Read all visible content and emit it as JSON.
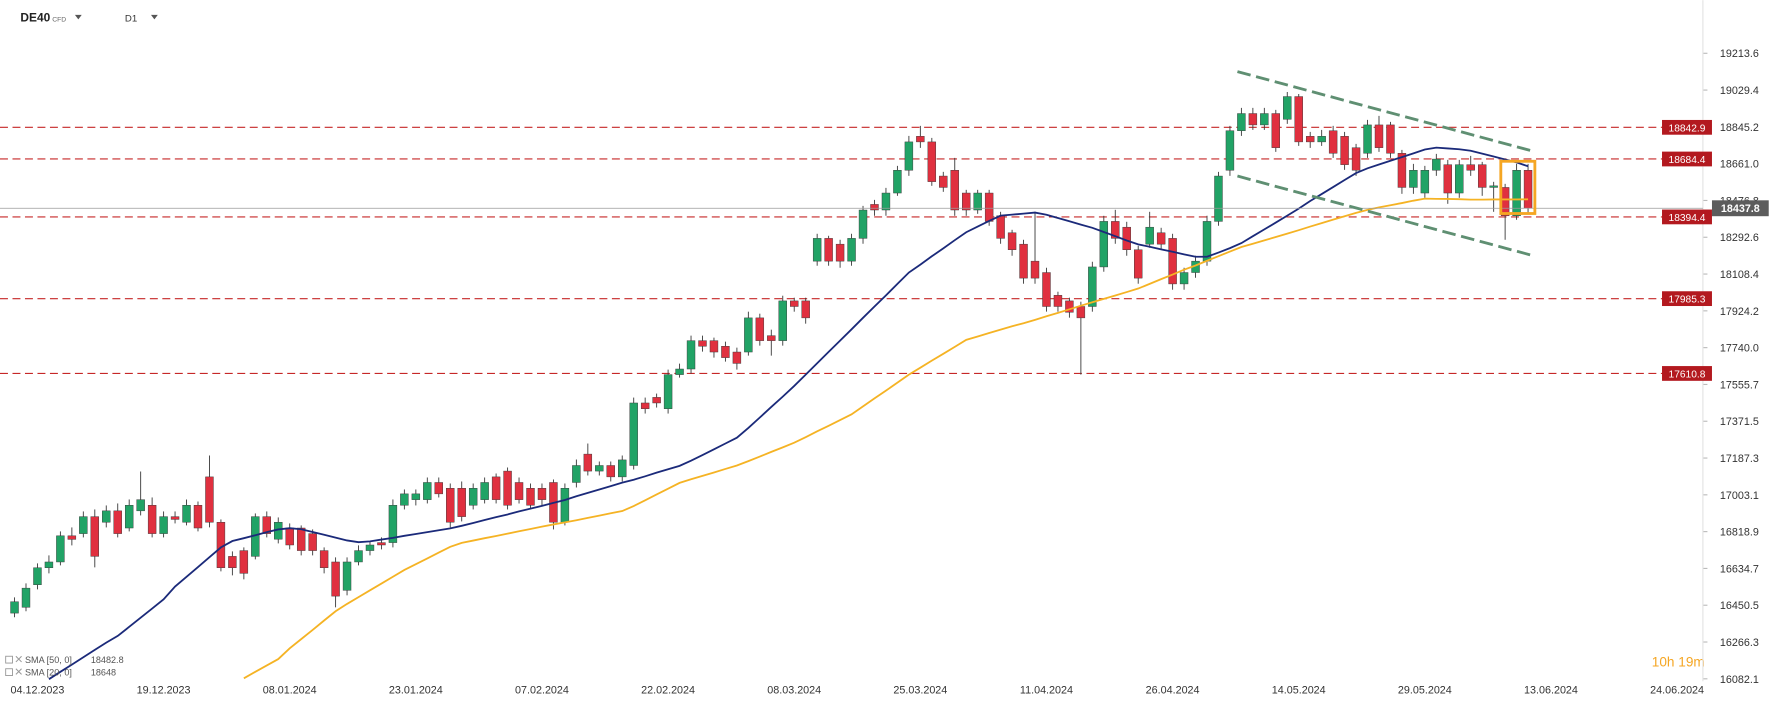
{
  "header": {
    "symbol": "DE40",
    "symbol_type": "CFD",
    "timeframe": "D1"
  },
  "chart_data": {
    "type": "candlestick",
    "up_color": "#21a366",
    "down_color": "#e0303f",
    "ylim": [
      16070,
      19480
    ],
    "yticks": [
      19213.6,
      19029.4,
      18845.2,
      {
        "value": 18661,
        "label": "18661.0"
      },
      18476.8,
      18292.6,
      18108.4,
      17924.2,
      {
        "value": 17740,
        "label": "17740.0"
      },
      17555.7,
      17371.5,
      17187.3,
      17003.1,
      16818.9,
      16634.7,
      16450.5,
      16266.3,
      16082.1
    ],
    "categories": [
      null,
      null,
      "04.12.2023",
      null,
      null,
      null,
      null,
      null,
      null,
      null,
      null,
      null,
      null,
      "19.12.2023",
      null,
      null,
      null,
      null,
      null,
      null,
      null,
      null,
      null,
      null,
      "08.01.2024",
      null,
      null,
      null,
      null,
      null,
      null,
      null,
      null,
      null,
      null,
      "23.01.2024",
      null,
      null,
      null,
      null,
      null,
      null,
      null,
      null,
      null,
      null,
      "07.02.2024",
      null,
      null,
      null,
      null,
      null,
      null,
      null,
      null,
      null,
      null,
      "22.02.2024",
      null,
      null,
      null,
      null,
      null,
      null,
      null,
      null,
      null,
      null,
      "08.03.2024",
      null,
      null,
      null,
      null,
      null,
      null,
      null,
      null,
      null,
      null,
      "25.03.2024",
      null,
      null,
      null,
      null,
      null,
      null,
      null,
      null,
      null,
      null,
      "11.04.2024",
      null,
      null,
      null,
      null,
      null,
      null,
      null,
      null,
      null,
      null,
      "26.04.2024",
      null,
      null,
      null,
      null,
      null,
      null,
      null,
      null,
      null,
      null,
      "14.05.2024",
      null,
      null,
      null,
      null,
      null,
      null,
      null,
      null,
      null,
      null,
      "29.05.2024",
      null,
      null,
      null,
      null,
      null,
      null,
      null,
      null,
      null,
      null,
      "13.06.2024",
      null,
      null,
      null,
      null,
      null,
      null,
      null,
      null,
      null,
      null,
      "24.06.2024"
    ],
    "open": [
      16411,
      16440,
      16553,
      16638,
      16667,
      16798,
      16809,
      16894,
      16866,
      16923,
      16837,
      16923,
      16951,
      16809,
      16894,
      16866,
      16951,
      17093,
      16866,
      16695,
      16724,
      16695,
      16894,
      16781,
      16837,
      16837,
      16809,
      16724,
      16667,
      16525,
      16667,
      16724,
      16764,
      16764,
      16951,
      16979,
      16979,
      17065,
      17036,
      17036,
      16951,
      16979,
      17093,
      17122,
      17065,
      17036,
      17036,
      17065,
      16866,
      17065,
      17207,
      17122,
      17150,
      17093,
      17150,
      17463,
      17491,
      17434,
      17605,
      17633,
      17775,
      17775,
      17747,
      17718,
      17718,
      17889,
      17800,
      17775,
      17974,
      17974,
      18173,
      18287,
      18258,
      18173,
      18287,
      18457,
      18429,
      18514,
      18628,
      18798,
      18770,
      18599,
      18628,
      18514,
      18429,
      18514,
      18400,
      18315,
      18258,
      18173,
      18116,
      18002,
      17974,
      17946,
      17946,
      18144,
      18372,
      18343,
      18230,
      18258,
      18315,
      18287,
      18059,
      18116,
      18173,
      18372,
      18628,
      18826,
      18912,
      18855,
      18912,
      18883,
      18997,
      18798,
      18770,
      18826,
      18798,
      18741,
      18713,
      18855,
      18855,
      18713,
      18542,
      18514,
      18628,
      18656,
      18514,
      18656,
      18656,
      18542,
      18542,
      18400,
      18628,
      null,
      null,
      null,
      null,
      null,
      null,
      null,
      null,
      null,
      null,
      null,
      null,
      null
    ],
    "high": [
      16490,
      16560,
      16660,
      16700,
      16820,
      16840,
      16920,
      16930,
      16950,
      16960,
      16980,
      17120,
      16990,
      16920,
      16920,
      16980,
      16970,
      17200,
      16880,
      16720,
      16740,
      16910,
      16920,
      16890,
      16860,
      16850,
      16830,
      16740,
      16690,
      16690,
      16750,
      16770,
      16790,
      16980,
      17030,
      17030,
      17090,
      17090,
      17060,
      17070,
      17060,
      17090,
      17110,
      17140,
      17090,
      17060,
      17060,
      17080,
      17060,
      17180,
      17260,
      17170,
      17170,
      17200,
      17490,
      17490,
      17510,
      17630,
      17660,
      17800,
      17800,
      17790,
      17770,
      17740,
      17920,
      17910,
      17830,
      18000,
      17990,
      17990,
      18310,
      18300,
      18280,
      18310,
      18450,
      18480,
      18540,
      18650,
      18800,
      18850,
      18790,
      18620,
      18690,
      18530,
      18530,
      18530,
      18420,
      18330,
      18280,
      18420,
      18140,
      18020,
      17990,
      17970,
      18170,
      18400,
      18430,
      18370,
      18250,
      18420,
      18340,
      18310,
      18140,
      18200,
      18400,
      18620,
      18850,
      18940,
      18940,
      18940,
      18930,
      19020,
      19010,
      18820,
      18830,
      18850,
      18820,
      18760,
      18880,
      18900,
      18870,
      18730,
      18660,
      18650,
      18710,
      18680,
      18680,
      18700,
      18670,
      18570,
      18560,
      18660,
      18660,
      null,
      null,
      null,
      null,
      null,
      null,
      null,
      null,
      null,
      null,
      null,
      null,
      null
    ],
    "low": [
      16390,
      16420,
      16530,
      16610,
      16650,
      16750,
      16790,
      16640,
      16840,
      16790,
      16820,
      16900,
      16790,
      16790,
      16860,
      16850,
      16820,
      16840,
      16620,
      16600,
      16580,
      16680,
      16790,
      16760,
      16730,
      16700,
      16700,
      16610,
      16440,
      16500,
      16650,
      16700,
      16730,
      16740,
      16930,
      16950,
      16960,
      16990,
      16840,
      16870,
      16930,
      16960,
      16960,
      16930,
      16960,
      16930,
      16950,
      16830,
      16850,
      17040,
      17100,
      17100,
      17070,
      17070,
      17130,
      17410,
      17440,
      17410,
      17590,
      17610,
      17720,
      17690,
      17670,
      17630,
      17700,
      17750,
      17700,
      17750,
      17920,
      17860,
      18150,
      18150,
      18140,
      18150,
      18260,
      18400,
      18400,
      18500,
      18600,
      18740,
      18550,
      18520,
      18400,
      18400,
      18410,
      18350,
      18260,
      18200,
      18060,
      18060,
      17920,
      17920,
      17890,
      17605,
      17920,
      18120,
      18260,
      18200,
      18060,
      18240,
      18230,
      18030,
      18030,
      18090,
      18150,
      18350,
      18600,
      18800,
      18830,
      18830,
      18720,
      18860,
      18750,
      18740,
      18750,
      18690,
      18630,
      18600,
      18690,
      18720,
      18690,
      18510,
      18510,
      18490,
      18600,
      18460,
      18490,
      18600,
      18500,
      18420,
      18280,
      18380,
      18410,
      null,
      null,
      null,
      null,
      null,
      null,
      null,
      null,
      null,
      null,
      null,
      null,
      null
    ],
    "close": [
      16468,
      16536,
      16638,
      16667,
      16798,
      16780,
      16894,
      16695,
      16923,
      16809,
      16951,
      16979,
      16809,
      16894,
      16880,
      16951,
      16837,
      16866,
      16638,
      16638,
      16610,
      16894,
      16809,
      16866,
      16752,
      16724,
      16724,
      16638,
      16496,
      16667,
      16724,
      16752,
      16752,
      16951,
      17008,
      17008,
      17065,
      17008,
      16866,
      16894,
      17036,
      17065,
      16979,
      16951,
      16979,
      16951,
      16979,
      16866,
      17036,
      17150,
      17122,
      17150,
      17093,
      17178,
      17463,
      17434,
      17463,
      17605,
      17633,
      17775,
      17747,
      17718,
      17690,
      17661,
      17889,
      17775,
      17775,
      17974,
      17946,
      17889,
      18287,
      18173,
      18173,
      18287,
      18429,
      18429,
      18514,
      18628,
      18770,
      18770,
      18571,
      18542,
      18429,
      18429,
      18514,
      18372,
      18287,
      18230,
      18088,
      18088,
      17946,
      17946,
      17917,
      17889,
      18144,
      18372,
      18287,
      18230,
      18088,
      18343,
      18258,
      18059,
      18116,
      18173,
      18372,
      18599,
      18826,
      18912,
      18855,
      18912,
      18741,
      18997,
      18770,
      18770,
      18798,
      18713,
      18656,
      18628,
      18855,
      18741,
      18713,
      18542,
      18628,
      18628,
      18684,
      18514,
      18656,
      18628,
      18542,
      18550,
      18400,
      18628,
      18437.8,
      null,
      null,
      null,
      null,
      null,
      null,
      null,
      null,
      null,
      null,
      null,
      null,
      null
    ],
    "series": [
      {
        "name": "SMA [50, 0]",
        "color": "#f5b324",
        "last": 18482.8,
        "values": [
          null,
          null,
          null,
          null,
          null,
          null,
          null,
          null,
          null,
          null,
          null,
          null,
          null,
          null,
          null,
          null,
          null,
          null,
          null,
          null,
          16085,
          16117,
          16149,
          16181,
          16235,
          16281,
          16327,
          16374,
          16420,
          16457,
          16491,
          16525,
          16559,
          16593,
          16627,
          16656,
          16685,
          16714,
          16743,
          16763,
          16774,
          16786,
          16797,
          16809,
          16821,
          16832,
          16844,
          16855,
          16865,
          16876,
          16888,
          16899,
          16911,
          16922,
          16947,
          16976,
          17005,
          17034,
          17063,
          17081,
          17098,
          17115,
          17133,
          17150,
          17172,
          17195,
          17218,
          17241,
          17264,
          17292,
          17321,
          17349,
          17378,
          17406,
          17446,
          17486,
          17525,
          17565,
          17605,
          17640,
          17675,
          17709,
          17744,
          17779,
          17796,
          17813,
          17830,
          17847,
          17862,
          17879,
          17897,
          17914,
          17932,
          17950,
          17967,
          17984,
          18001,
          18018,
          18036,
          18059,
          18083,
          18106,
          18130,
          18151,
          18175,
          18198,
          18221,
          18244,
          18260,
          18277,
          18294,
          18311,
          18328,
          18346,
          18363,
          18381,
          18398,
          18415,
          18430,
          18442,
          18453,
          18464,
          18476,
          18486,
          18485,
          18484,
          18483,
          18481,
          18481,
          18482,
          18482,
          18482,
          18482.8,
          null,
          null,
          null,
          null,
          null,
          null,
          null,
          null,
          null,
          null,
          null,
          null,
          null
        ]
      },
      {
        "name": "SMA [20, 0]",
        "color": "#1b2a7a",
        "last": 18648.0,
        "values": [
          null,
          null,
          null,
          16080,
          16117,
          16153,
          16190,
          16227,
          16263,
          16297,
          16342,
          16388,
          16434,
          16480,
          16544,
          16593,
          16642,
          16691,
          16740,
          16772,
          16786,
          16801,
          16816,
          16830,
          16836,
          16831,
          16817,
          16803,
          16789,
          16775,
          16766,
          16770,
          16779,
          16788,
          16798,
          16807,
          16816,
          16826,
          16835,
          16848,
          16862,
          16877,
          16891,
          16905,
          16920,
          16934,
          16948,
          16963,
          16977,
          16996,
          17013,
          17030,
          17047,
          17064,
          17079,
          17096,
          17114,
          17131,
          17148,
          17174,
          17202,
          17231,
          17260,
          17289,
          17338,
          17390,
          17443,
          17495,
          17548,
          17605,
          17662,
          17719,
          17775,
          17832,
          17889,
          17946,
          18002,
          18059,
          18116,
          18156,
          18197,
          18237,
          18278,
          18318,
          18346,
          18374,
          18401,
          18406,
          18411,
          18416,
          18405,
          18389,
          18373,
          18356,
          18340,
          18319,
          18298,
          18276,
          18257,
          18245,
          18232,
          18220,
          18207,
          18195,
          18195,
          18216,
          18238,
          18263,
          18298,
          18332,
          18366,
          18401,
          18436,
          18474,
          18509,
          18544,
          18579,
          18614,
          18638,
          18657,
          18676,
          18694,
          18713,
          18732,
          18741,
          18737,
          18733,
          18726,
          18711,
          18697,
          18682,
          18667,
          18648,
          null,
          null,
          null,
          null,
          null,
          null,
          null,
          null,
          null,
          null,
          null,
          null,
          null
        ]
      }
    ],
    "levels": [
      18842.9,
      18684.4,
      18394.4,
      17985.3,
      17610.8
    ],
    "level_color": "#c62828",
    "price": 18437.8,
    "countdown": "10h 19m"
  }
}
